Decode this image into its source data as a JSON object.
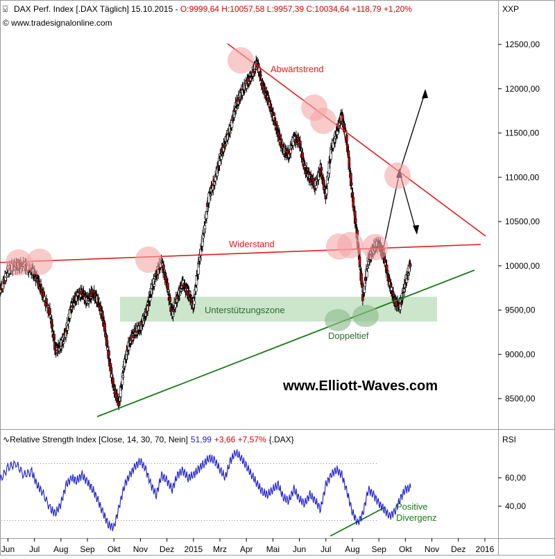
{
  "header": {
    "title": "DAX Perf. Index [.DAX  Täglich] 15.10.2015 - ",
    "ohlc": "O:9999,64 H:10057,58 L:9957,39 C:10034,64 +118,79 +1,20%",
    "source": "© www.tradesignalonline.com",
    "axis_code": "XXP"
  },
  "rsi_header": {
    "label_prefix": "Relative Strength Index [Close, 14, 30, 70, Nein]",
    "value": "51,99",
    "change": "+3,66 +7,57%",
    "symbol": "{.DAX}",
    "axis_code": "RSI"
  },
  "watermark": "www.Elliott-Waves.com",
  "annotations": {
    "downtrend": "Abwärtstrend",
    "resistance": "Widerstand",
    "support_zone": "Unterstützungszone",
    "double_bottom": "Doppeltief",
    "positive_divergence_1": "Positive",
    "positive_divergence_2": "Divergenz"
  },
  "colors": {
    "resistance_line": "#e8191c",
    "downtrend_line": "#e8191c",
    "support_line": "#1a7a1a",
    "support_zone": "#b9ddb9",
    "highlight_red": "#f4a6a6",
    "highlight_green": "#8fbf8f",
    "rsi_line": "#1a1acc",
    "candle_up": "#ffffff",
    "candle_down": "#c40000"
  },
  "chart_data": [
    {
      "type": "candlestick",
      "y_axis_ticks": [
        "12500,00",
        "12000,00",
        "11500,00",
        "11000,00",
        "10500,00",
        "10000,00",
        "9500,00",
        "9000,00",
        "8500,00"
      ],
      "y_axis_values": [
        12500,
        12000,
        11500,
        11000,
        10500,
        10000,
        9500,
        9000,
        8500
      ],
      "ylim": [
        8200,
        12900
      ],
      "x_ticks": [
        "Jun",
        "Jul",
        "Aug",
        "Sep",
        "Okt",
        "Nov",
        "Dez",
        "2015",
        "Mrz",
        "Apr",
        "Mai",
        "Jun",
        "Jul",
        "Aug",
        "Sep",
        "Okt",
        "Nov",
        "Dez",
        "2016"
      ],
      "x_tick_values": [
        0,
        1,
        2,
        3,
        4,
        5,
        6,
        7,
        8,
        9,
        10,
        11,
        12,
        13,
        14,
        15,
        16,
        17,
        18
      ],
      "xlim": [
        -0.3,
        18.5
      ],
      "series": [
        {
          "values": [
            [
              -0.3,
              9700
            ],
            [
              0.0,
              9950
            ],
            [
              0.3,
              10000
            ],
            [
              0.6,
              10010
            ],
            [
              0.9,
              9950
            ],
            [
              1.1,
              9850
            ],
            [
              1.3,
              9700
            ],
            [
              1.6,
              9450
            ],
            [
              1.8,
              9050
            ],
            [
              2.0,
              9100
            ],
            [
              2.2,
              9250
            ],
            [
              2.4,
              9550
            ],
            [
              2.6,
              9650
            ],
            [
              2.8,
              9700
            ],
            [
              3.0,
              9600
            ],
            [
              3.2,
              9700
            ],
            [
              3.4,
              9600
            ],
            [
              3.6,
              9400
            ],
            [
              3.8,
              9000
            ],
            [
              4.0,
              8600
            ],
            [
              4.2,
              8450
            ],
            [
              4.4,
              8900
            ],
            [
              4.6,
              9150
            ],
            [
              4.8,
              9250
            ],
            [
              5.0,
              9300
            ],
            [
              5.2,
              9450
            ],
            [
              5.4,
              9700
            ],
            [
              5.6,
              9900
            ],
            [
              5.8,
              10050
            ],
            [
              6.0,
              9800
            ],
            [
              6.2,
              9450
            ],
            [
              6.4,
              9650
            ],
            [
              6.6,
              9800
            ],
            [
              6.8,
              9700
            ],
            [
              7.0,
              9550
            ],
            [
              7.2,
              10000
            ],
            [
              7.4,
              10400
            ],
            [
              7.6,
              10800
            ],
            [
              7.8,
              10950
            ],
            [
              8.0,
              11200
            ],
            [
              8.2,
              11400
            ],
            [
              8.4,
              11550
            ],
            [
              8.6,
              11800
            ],
            [
              8.8,
              11950
            ],
            [
              9.0,
              12050
            ],
            [
              9.2,
              12150
            ],
            [
              9.4,
              12300
            ],
            [
              9.6,
              12050
            ],
            [
              9.8,
              11900
            ],
            [
              10.0,
              11700
            ],
            [
              10.2,
              11500
            ],
            [
              10.4,
              11300
            ],
            [
              10.6,
              11250
            ],
            [
              10.8,
              11450
            ],
            [
              11.0,
              11400
            ],
            [
              11.2,
              11100
            ],
            [
              11.4,
              11000
            ],
            [
              11.6,
              10900
            ],
            [
              11.8,
              11100
            ],
            [
              12.0,
              10800
            ],
            [
              12.2,
              11300
            ],
            [
              12.4,
              11500
            ],
            [
              12.6,
              11700
            ],
            [
              12.8,
              11400
            ],
            [
              13.0,
              10800
            ],
            [
              13.2,
              10300
            ],
            [
              13.4,
              9650
            ],
            [
              13.6,
              10050
            ],
            [
              13.8,
              10200
            ],
            [
              14.0,
              10250
            ],
            [
              14.2,
              10100
            ],
            [
              14.4,
              9800
            ],
            [
              14.6,
              9600
            ],
            [
              14.8,
              9550
            ],
            [
              15.0,
              9800
            ],
            [
              15.2,
              10034
            ]
          ]
        }
      ]
    },
    {
      "type": "line",
      "name": "RSI",
      "y_axis_ticks": [
        "60,00",
        "40,00"
      ],
      "y_axis_values": [
        60,
        40
      ],
      "ylim": [
        22,
        80
      ],
      "guide_levels": [
        70,
        30
      ],
      "x_ticks": [
        "Jun",
        "Jul",
        "Aug",
        "Sep",
        "Okt",
        "Nov",
        "Dez",
        "2015",
        "Mrz",
        "Apr",
        "Mai",
        "Jun",
        "Jul",
        "Aug",
        "Sep",
        "Okt",
        "Nov",
        "Dez",
        "2016"
      ],
      "x_tick_values": [
        0,
        1,
        2,
        3,
        4,
        5,
        6,
        7,
        8,
        9,
        10,
        11,
        12,
        13,
        14,
        15,
        16,
        17,
        18
      ],
      "xlim": [
        -0.3,
        18.5
      ],
      "series": [
        {
          "values": [
            [
              -0.3,
              58
            ],
            [
              0.0,
              67
            ],
            [
              0.3,
              70
            ],
            [
              0.6,
              62
            ],
            [
              0.9,
              64
            ],
            [
              1.1,
              55
            ],
            [
              1.3,
              50
            ],
            [
              1.6,
              38
            ],
            [
              1.8,
              35
            ],
            [
              2.0,
              42
            ],
            [
              2.2,
              55
            ],
            [
              2.4,
              60
            ],
            [
              2.6,
              58
            ],
            [
              2.8,
              62
            ],
            [
              3.0,
              57
            ],
            [
              3.2,
              52
            ],
            [
              3.4,
              44
            ],
            [
              3.6,
              35
            ],
            [
              3.8,
              27
            ],
            [
              4.0,
              25
            ],
            [
              4.2,
              40
            ],
            [
              4.4,
              55
            ],
            [
              4.6,
              62
            ],
            [
              4.8,
              68
            ],
            [
              5.0,
              72
            ],
            [
              5.2,
              66
            ],
            [
              5.4,
              55
            ],
            [
              5.6,
              48
            ],
            [
              5.8,
              62
            ],
            [
              6.0,
              58
            ],
            [
              6.2,
              52
            ],
            [
              6.4,
              62
            ],
            [
              6.6,
              65
            ],
            [
              6.8,
              60
            ],
            [
              7.0,
              62
            ],
            [
              7.2,
              66
            ],
            [
              7.4,
              70
            ],
            [
              7.6,
              74
            ],
            [
              7.8,
              72
            ],
            [
              8.0,
              66
            ],
            [
              8.2,
              60
            ],
            [
              8.4,
              72
            ],
            [
              8.6,
              78
            ],
            [
              8.8,
              74
            ],
            [
              9.0,
              68
            ],
            [
              9.2,
              62
            ],
            [
              9.4,
              56
            ],
            [
              9.6,
              50
            ],
            [
              9.8,
              48
            ],
            [
              10.0,
              52
            ],
            [
              10.2,
              55
            ],
            [
              10.4,
              46
            ],
            [
              10.6,
              44
            ],
            [
              10.8,
              52
            ],
            [
              11.0,
              45
            ],
            [
              11.2,
              42
            ],
            [
              11.4,
              48
            ],
            [
              11.6,
              44
            ],
            [
              11.8,
              38
            ],
            [
              12.0,
              55
            ],
            [
              12.2,
              62
            ],
            [
              12.4,
              66
            ],
            [
              12.6,
              62
            ],
            [
              12.8,
              50
            ],
            [
              13.0,
              36
            ],
            [
              13.2,
              28
            ],
            [
              13.4,
              35
            ],
            [
              13.6,
              52
            ],
            [
              13.8,
              48
            ],
            [
              14.0,
              42
            ],
            [
              14.2,
              38
            ],
            [
              14.4,
              33
            ],
            [
              14.6,
              36
            ],
            [
              14.8,
              45
            ],
            [
              15.0,
              52
            ],
            [
              15.2,
              53
            ]
          ]
        }
      ]
    }
  ]
}
